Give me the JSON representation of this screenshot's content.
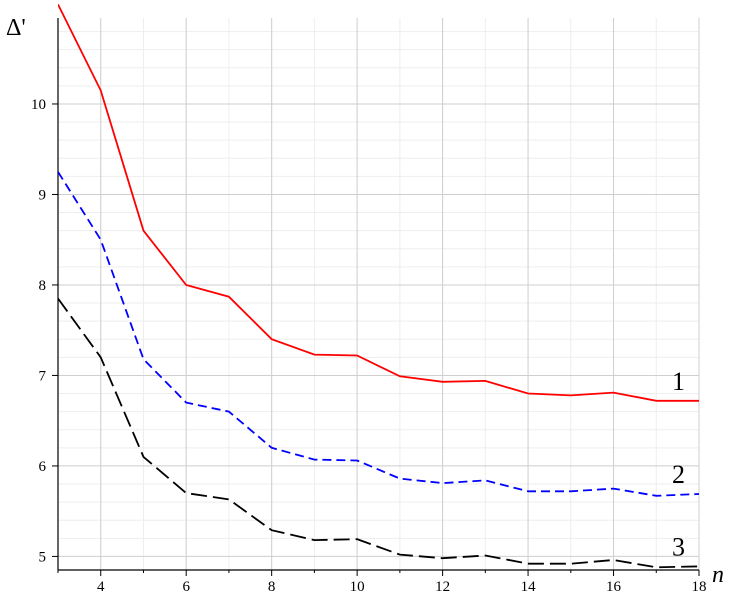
{
  "chart_data": {
    "type": "line",
    "xlabel": "n",
    "ylabel": "Δ'",
    "xlim": [
      3,
      18
    ],
    "ylim": [
      4.85,
      10.95
    ],
    "x_ticks": [
      4,
      6,
      8,
      10,
      12,
      14,
      16,
      18
    ],
    "y_ticks": [
      5,
      6,
      7,
      8,
      9,
      10
    ],
    "grid": true,
    "x": [
      3,
      4,
      5,
      6,
      7,
      8,
      9,
      10,
      11,
      12,
      13,
      14,
      15,
      16,
      17,
      18
    ],
    "series": [
      {
        "name": "1",
        "color": "#ff0000",
        "style": "solid",
        "values": [
          11.1,
          10.15,
          8.6,
          8.0,
          7.87,
          7.4,
          7.23,
          7.22,
          6.99,
          6.93,
          6.94,
          6.8,
          6.78,
          6.81,
          6.72,
          6.72
        ]
      },
      {
        "name": "2",
        "color": "#0000ff",
        "style": "dashed",
        "values": [
          9.25,
          8.5,
          7.18,
          6.7,
          6.6,
          6.2,
          6.07,
          6.06,
          5.86,
          5.81,
          5.84,
          5.72,
          5.72,
          5.75,
          5.67,
          5.69
        ]
      },
      {
        "name": "3",
        "color": "#000000",
        "style": "longdash",
        "values": [
          7.85,
          7.2,
          6.1,
          5.7,
          5.63,
          5.29,
          5.18,
          5.19,
          5.02,
          4.98,
          5.01,
          4.92,
          4.92,
          4.96,
          4.88,
          4.89
        ]
      }
    ]
  }
}
